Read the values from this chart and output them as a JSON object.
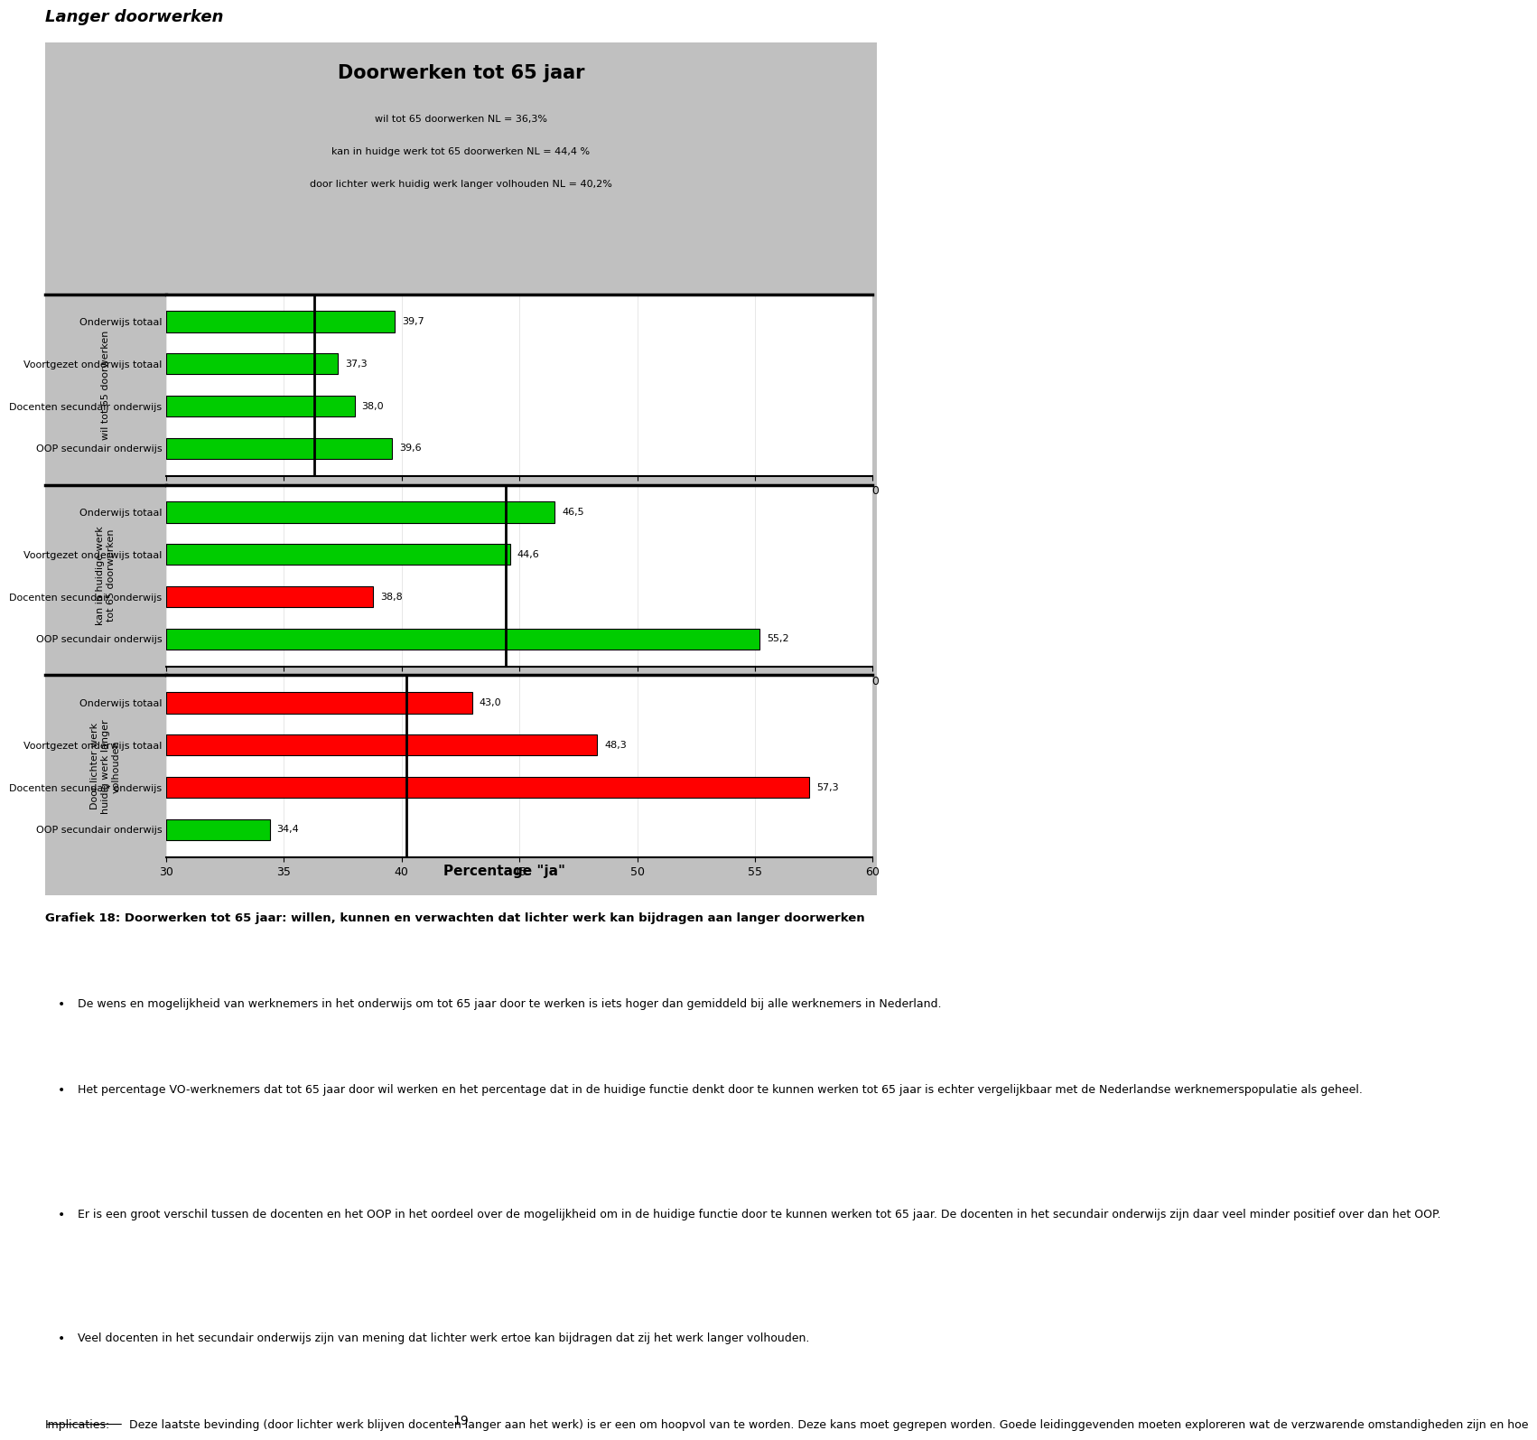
{
  "title": "Doorwerken tot 65 jaar",
  "subtitle_lines": [
    "wil tot 65 doorwerken NL = 36,3%",
    "kan in huidge werk tot 65 doorwerken NL = 44,4 %",
    "door lichter werk huidig werk langer volhouden NL = 40,2%"
  ],
  "xlabel": "Percentage \"ja\"",
  "bg_color": "#C0C0C0",
  "plot_bg_color": "#FFFFFF",
  "xlim": [
    30,
    60
  ],
  "xticks": [
    30,
    35,
    40,
    45,
    50,
    55,
    60
  ],
  "panels": [
    {
      "ylabel": "wil tot 65 doorwerken",
      "categories": [
        "Onderwijs totaal",
        "Voortgezet onderwijs totaal",
        "Docenten secundair onderwijs",
        "OOP secundair onderwijs"
      ],
      "values": [
        39.7,
        37.3,
        38.0,
        39.6
      ],
      "value_labels": [
        "39,7",
        "37,3",
        "38,0",
        "39,6"
      ],
      "colors": [
        "#00CC00",
        "#00CC00",
        "#00CC00",
        "#00CC00"
      ],
      "nl_line": 36.3
    },
    {
      "ylabel": "kan in huidige werk\ntot 65 doorwerken",
      "categories": [
        "Onderwijs totaal",
        "Voortgezet onderwijs totaal",
        "Docenten secundair onderwijs",
        "OOP secundair onderwijs"
      ],
      "values": [
        46.5,
        44.6,
        38.8,
        55.2
      ],
      "value_labels": [
        "46,5",
        "44,6",
        "38,8",
        "55,2"
      ],
      "colors": [
        "#00CC00",
        "#00CC00",
        "#FF0000",
        "#00CC00"
      ],
      "nl_line": 44.4
    },
    {
      "ylabel": "Door lichter werk\nhuidig werk langer\nvolhouden",
      "categories": [
        "Onderwijs totaal",
        "Voortgezet onderwijs totaal",
        "Docenten secundair onderwijs",
        "OOP secundair onderwijs"
      ],
      "values": [
        43.0,
        48.3,
        57.3,
        34.4
      ],
      "value_labels": [
        "43,0",
        "48,3",
        "57,3",
        "34,4"
      ],
      "colors": [
        "#FF0000",
        "#FF0000",
        "#FF0000",
        "#00CC00"
      ],
      "nl_line": 40.2
    }
  ],
  "header_text": "Langer doorwerken",
  "footer_bold": "Grafiek 18: Doorwerken tot 65 jaar: willen, kunnen en verwachten dat lichter werk kan bijdragen aan langer doorwerken",
  "footer_bullets": [
    "De wens en mogelijkheid van werknemers in het onderwijs om tot 65 jaar door te werken is iets hoger dan gemiddeld bij alle werknemers in Nederland.",
    "Het percentage VO-werknemers dat tot 65 jaar door wil werken en het percentage dat in de huidige functie denkt door te kunnen werken tot 65 jaar is echter vergelijkbaar met de Nederlandse werknemerspopulatie als geheel.",
    "Er is een groot verschil tussen de docenten en het OOP in het oordeel over de mogelijkheid om in de huidige functie door te kunnen werken tot 65 jaar. De docenten in het secundair onderwijs zijn daar veel minder positief over dan het OOP.",
    "Veel docenten in het secundair onderwijs zijn van mening dat lichter werk ertoe kan bijdragen dat zij het werk langer volhouden."
  ],
  "footer_implicaties": "Implicaties: Deze laatste bevinding (door lichter werk blijven docenten langer aan het werk) is er een om hoopvol van te worden. Deze kans moet gegrepen worden. Goede leidinggevenden moeten exploreren wat de verzwarende omstandigheden zijn en hoe",
  "page_number": "19"
}
